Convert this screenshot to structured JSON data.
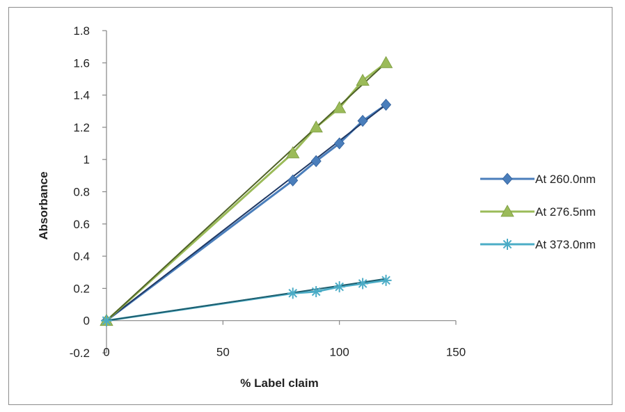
{
  "chart_data": {
    "type": "scatter",
    "title": "",
    "xlabel": "% Label claim",
    "ylabel": "Absorbance",
    "xlim": [
      0,
      150
    ],
    "ylim": [
      -0.2,
      1.8
    ],
    "xticks": [
      0,
      50,
      100,
      150
    ],
    "yticks": [
      -0.2,
      0,
      0.2,
      0.4,
      0.6,
      0.8,
      1,
      1.2,
      1.4,
      1.6,
      1.8
    ],
    "xtick_labels": [
      "0",
      "50",
      "100",
      "150"
    ],
    "ytick_labels": [
      "-0.2",
      "0",
      "0.2",
      "0.4",
      "0.6",
      "0.8",
      "1",
      "1.2",
      "1.4",
      "1.6",
      "1.8"
    ],
    "grid": false,
    "legend_position": "right",
    "series": [
      {
        "name": "At 260.0nm",
        "color": "#4a7ebb",
        "trend_color": "#1f3864",
        "marker": "diamond",
        "x": [
          0,
          80,
          90,
          100,
          110,
          120
        ],
        "y": [
          0,
          0.87,
          0.99,
          1.1,
          1.24,
          1.34
        ],
        "trendline": [
          [
            0,
            0
          ],
          [
            120,
            1.34
          ]
        ]
      },
      {
        "name": "At 276.5nm",
        "color": "#9bbb59",
        "trend_color": "#4f6228",
        "marker": "triangle",
        "x": [
          0,
          80,
          90,
          100,
          110,
          120
        ],
        "y": [
          0,
          1.04,
          1.2,
          1.32,
          1.49,
          1.6
        ],
        "trendline": [
          [
            0,
            0
          ],
          [
            120,
            1.6
          ]
        ]
      },
      {
        "name": "At 373.0nm",
        "color": "#4bacc6",
        "trend_color": "#1e5e6e",
        "marker": "asterisk",
        "x": [
          0,
          80,
          90,
          100,
          110,
          120
        ],
        "y": [
          0,
          0.17,
          0.18,
          0.21,
          0.23,
          0.25
        ],
        "trendline": [
          [
            0,
            0
          ],
          [
            120,
            0.26
          ]
        ]
      }
    ]
  }
}
